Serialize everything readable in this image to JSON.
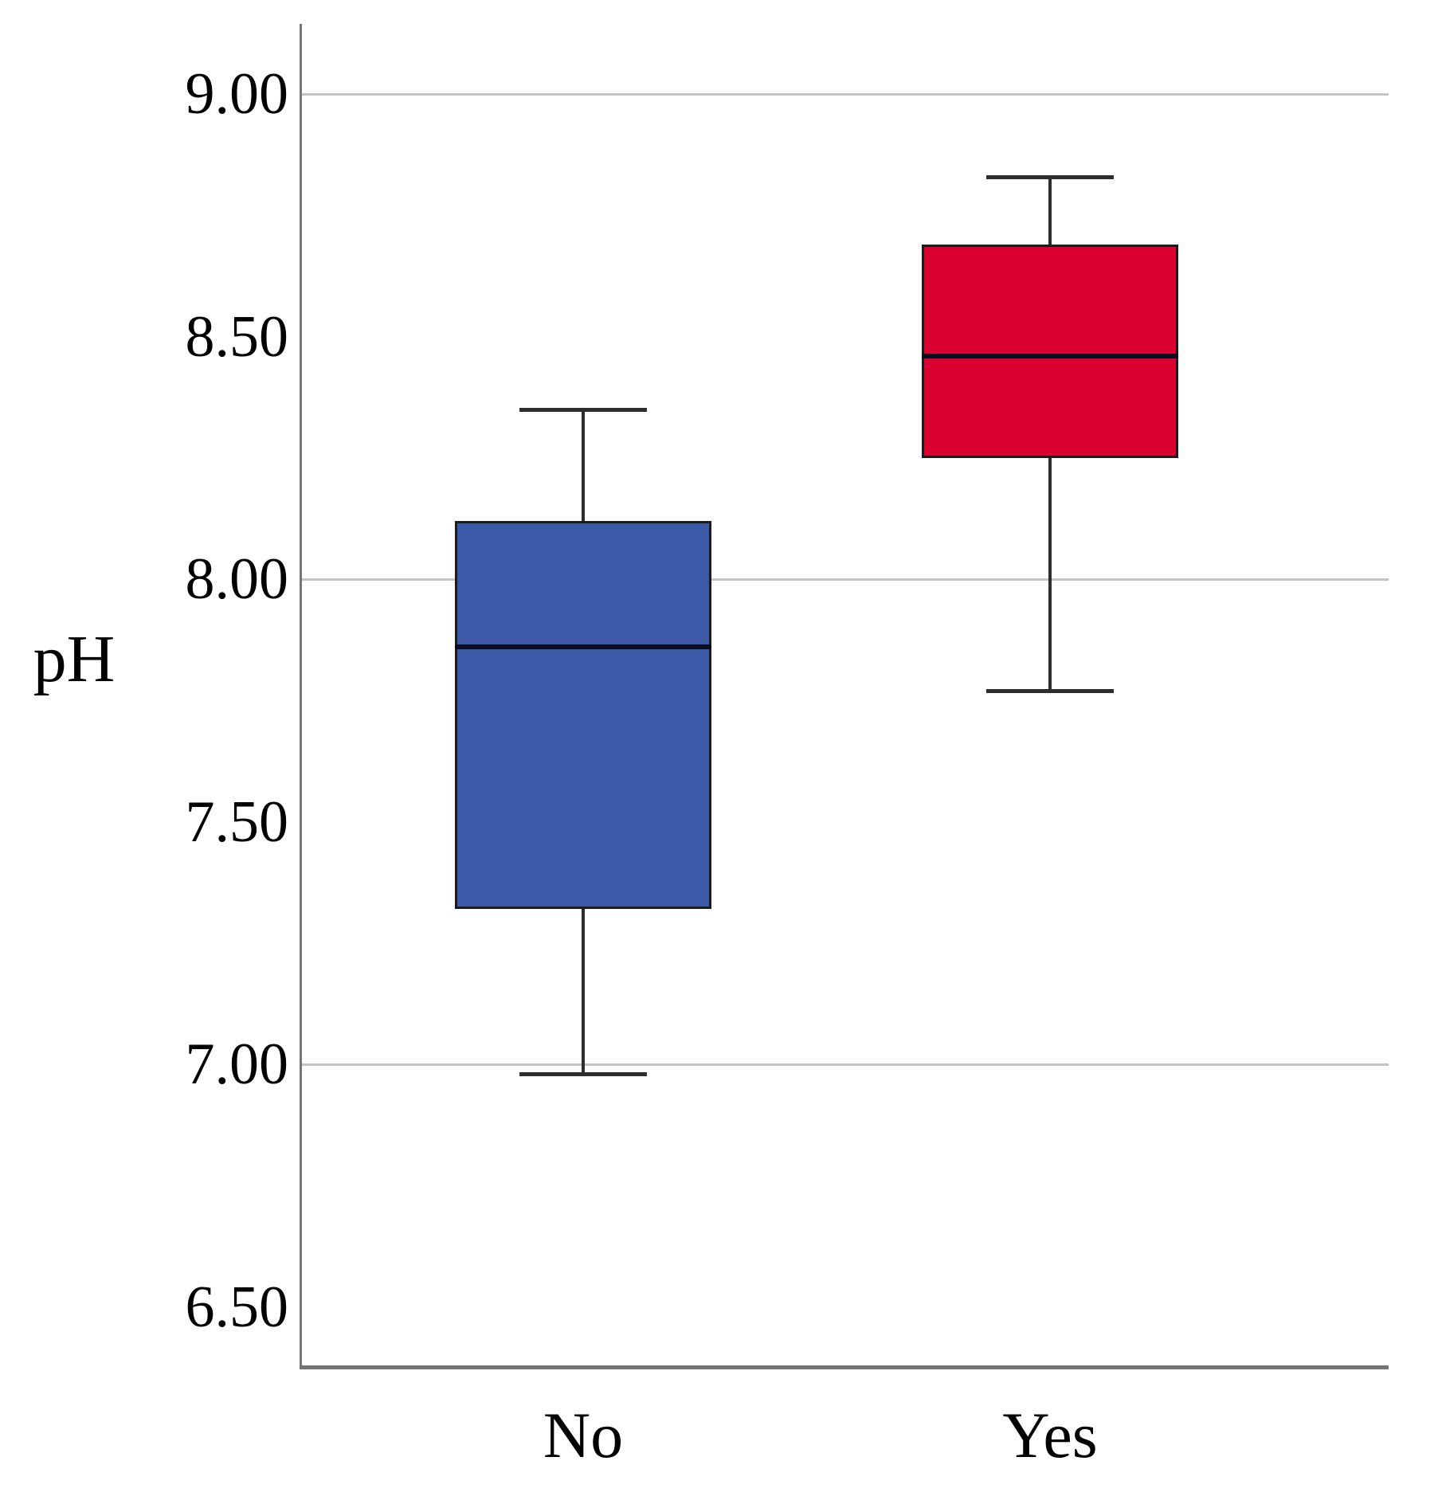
{
  "page": {
    "background": "#ffffff"
  },
  "chart_data": {
    "type": "boxplot",
    "title": "",
    "ylabel": "pH",
    "xlabel": "",
    "categories": [
      "No",
      "Yes"
    ],
    "y_ticks": [
      {
        "value": 9.0,
        "label": "9.00",
        "gridline": true
      },
      {
        "value": 8.5,
        "label": "8.50",
        "gridline": false
      },
      {
        "value": 8.0,
        "label": "8.00",
        "gridline": true
      },
      {
        "value": 7.5,
        "label": "7.50",
        "gridline": false
      },
      {
        "value": 7.0,
        "label": "7.00",
        "gridline": true
      },
      {
        "value": 6.5,
        "label": "6.50",
        "gridline": false
      }
    ],
    "ylim": [
      6.37,
      9.15
    ],
    "grid": "horizontal-at-whole-units-only",
    "legend": "none",
    "series": [
      {
        "category": "No",
        "color": "#3C59A7",
        "whisker_low": 6.98,
        "q1": 7.32,
        "median": 7.86,
        "q3": 8.12,
        "whisker_high": 8.35
      },
      {
        "category": "Yes",
        "color": "#DB0232",
        "whisker_low": 7.77,
        "q1": 8.25,
        "median": 8.46,
        "q3": 8.69,
        "whisker_high": 8.83
      }
    ],
    "colors": {
      "box_border": "#1c1c1c",
      "median_line": "#0a0e1e",
      "whisker": "#2e2e2e",
      "gridline": "#c4c4c4",
      "axis_line": "#757575",
      "text": "#000000"
    }
  }
}
